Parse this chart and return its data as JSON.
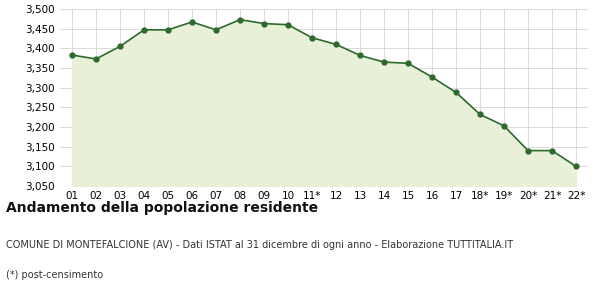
{
  "x_labels": [
    "01",
    "02",
    "03",
    "04",
    "05",
    "06",
    "07",
    "08",
    "09",
    "10",
    "11*",
    "12",
    "13",
    "14",
    "15",
    "16",
    "17",
    "18*",
    "19*",
    "20*",
    "21*",
    "22*"
  ],
  "y_values": [
    3383,
    3373,
    3405,
    3447,
    3447,
    3467,
    3447,
    3473,
    3463,
    3460,
    3427,
    3410,
    3382,
    3365,
    3362,
    3327,
    3288,
    3232,
    3203,
    3140,
    3140,
    3100
  ],
  "ylim_min": 3050,
  "ylim_max": 3500,
  "yticks": [
    3050,
    3100,
    3150,
    3200,
    3250,
    3300,
    3350,
    3400,
    3450,
    3500
  ],
  "line_color": "#2d6a2d",
  "fill_color": "#e8f0d8",
  "marker_color": "#2d6a2d",
  "bg_color": "#ffffff",
  "plot_bg_color": "#ffffff",
  "grid_color": "#cccccc",
  "title": "Andamento della popolazione residente",
  "subtitle": "COMUNE DI MONTEFALCIONE (AV) - Dati ISTAT al 31 dicembre di ogni anno - Elaborazione TUTTITALIA.IT",
  "footnote": "(*) post-censimento",
  "title_fontsize": 10,
  "subtitle_fontsize": 7,
  "footnote_fontsize": 7,
  "tick_fontsize": 7.5
}
